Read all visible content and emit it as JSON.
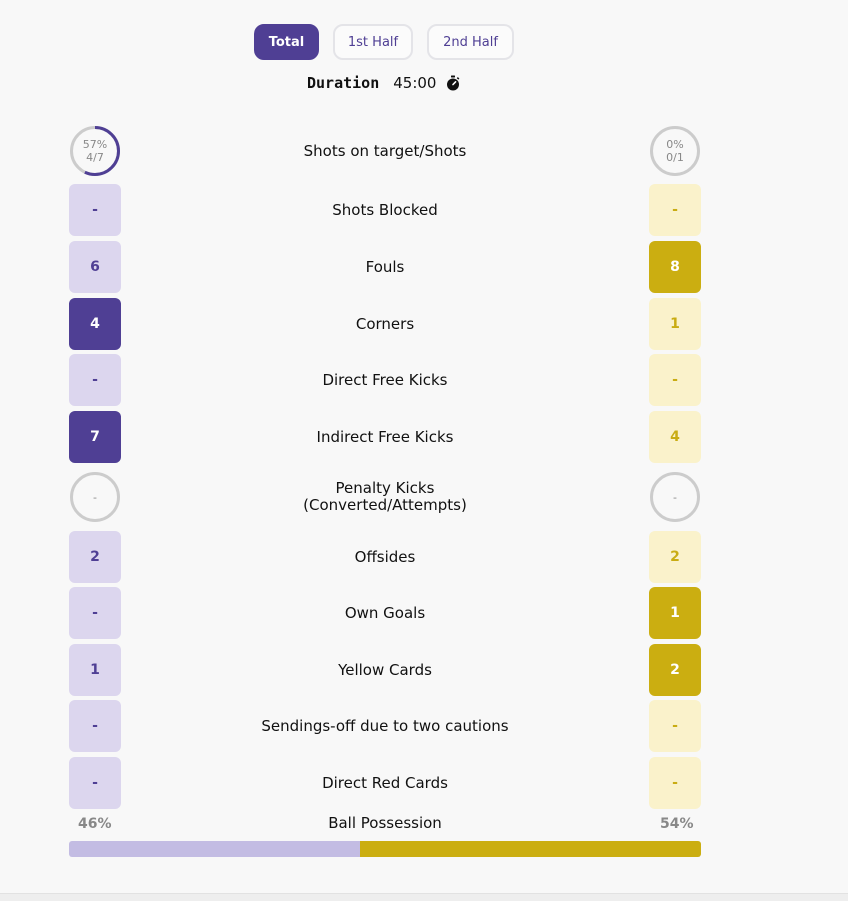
{
  "tabs": [
    {
      "label": "Total",
      "active": true
    },
    {
      "label": "1st Half",
      "active": false
    },
    {
      "label": "2nd Half",
      "active": false
    }
  ],
  "duration": {
    "label": "Duration",
    "value": "45:00",
    "icon": "stopwatch-icon"
  },
  "colors": {
    "home_dark": "#4f3f94",
    "home_light": "#dcd6ee",
    "home_bar": "#c3bce3",
    "away_dark": "#cbae11",
    "away_light": "#faf2cb",
    "ring_gray": "#cccccc"
  },
  "stats": {
    "shots": {
      "label": "Shots on target/Shots",
      "home_pct": "57%",
      "home_ratio": "4/7",
      "away_pct": "0%",
      "away_ratio": "0/1",
      "home_fraction": 0.57,
      "away_fraction": 0.0
    },
    "shots_blocked": {
      "label": "Shots Blocked",
      "home": "-",
      "away": "-"
    },
    "fouls": {
      "label": "Fouls",
      "home": "6",
      "away": "8"
    },
    "corners": {
      "label": "Corners",
      "home": "4",
      "away": "1"
    },
    "direct_free_kicks": {
      "label": "Direct Free Kicks",
      "home": "-",
      "away": "-"
    },
    "indirect_free_kicks": {
      "label": "Indirect Free Kicks",
      "home": "7",
      "away": "4"
    },
    "penalty_kicks": {
      "label_line1": "Penalty Kicks",
      "label_line2": "(Converted/Attempts)",
      "home": "-",
      "away": "-"
    },
    "offsides": {
      "label": "Offsides",
      "home": "2",
      "away": "2"
    },
    "own_goals": {
      "label": "Own Goals",
      "home": "-",
      "away": "1"
    },
    "yellow_cards": {
      "label": "Yellow Cards",
      "home": "1",
      "away": "2"
    },
    "sendings_off": {
      "label": "Sendings-off due to two cautions",
      "home": "-",
      "away": "-"
    },
    "direct_red_cards": {
      "label": "Direct Red Cards",
      "home": "-",
      "away": "-"
    }
  },
  "possession": {
    "label": "Ball Possession",
    "home_pct": "46%",
    "away_pct": "54%",
    "home_value": 46,
    "away_value": 54
  }
}
